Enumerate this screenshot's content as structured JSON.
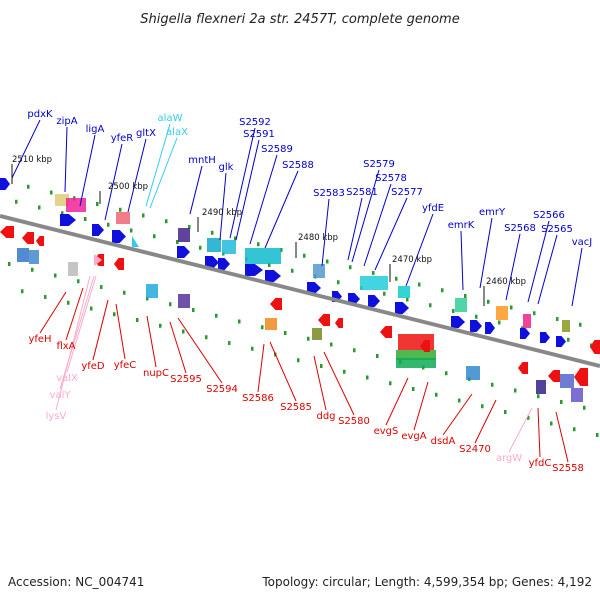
{
  "title": "Shigella flexneri 2a str. 2457T, complete genome",
  "footer": {
    "accession": "Accession: NC_004741",
    "topology": "Topology: circular; Length: 4,599,354 bp; Genes: 4,192"
  },
  "kbp_labels": [
    "2510 kbp",
    "2500 kbp",
    "2490 kbp",
    "2480 kbp",
    "2470 kbp",
    "2460 kbp"
  ],
  "colors": {
    "upper_label": "#0000cc",
    "lower_label": "#dd0000",
    "rna_upper": "#33ccee",
    "rna_lower": "#ffaacc"
  },
  "upper_genes": [
    "pdxK",
    "zipA",
    "ligA",
    "yfeR",
    "gltX",
    "alaW",
    "alaX",
    "mntH",
    "glk",
    "S2592",
    "S2591",
    "S2589",
    "S2588",
    "S2583",
    "S2581",
    "S2579",
    "S2578",
    "S2577",
    "yfdE",
    "emrK",
    "emrY",
    "S2568",
    "S2566",
    "S2565",
    "vacJ"
  ],
  "lower_genes": [
    "yfeH",
    "flxA",
    "valX",
    "valY",
    "lysV",
    "yfeD",
    "yfeC",
    "nupC",
    "S2595",
    "S2594",
    "S2586",
    "S2585",
    "ddg",
    "S2580",
    "evgS",
    "evgA",
    "dsdA",
    "S2470",
    "argW",
    "yfdC",
    "S2558"
  ]
}
